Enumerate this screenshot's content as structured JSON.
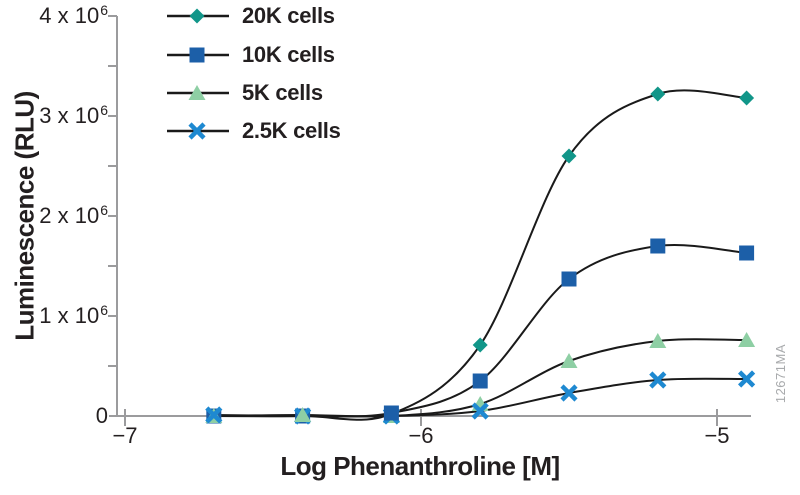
{
  "figure": {
    "watermark": "12671MA",
    "background": "#ffffff",
    "text_color": "#231f20",
    "axis_color": "#9b9b9d",
    "curve_color": "#1a1a1a",
    "watermark_color": "#a8aaac"
  },
  "chart_data": {
    "type": "line",
    "title": "",
    "xlabel": "Log Phenanthroline [M]",
    "ylabel": "Luminescence (RLU)",
    "grid": false,
    "legend_position": "top-left",
    "xlim": [
      -7,
      -4.78
    ],
    "ylim": [
      0,
      4000000
    ],
    "x_ticks": [
      {
        "v": -7,
        "label": "−7"
      },
      {
        "v": -6,
        "label": "−6"
      },
      {
        "v": -5,
        "label": "−5"
      }
    ],
    "y_ticks": [
      {
        "v": 0,
        "base": "0",
        "sup": ""
      },
      {
        "v": 1000000,
        "base": "1 x 10",
        "sup": "6"
      },
      {
        "v": 2000000,
        "base": "2 x 10",
        "sup": "6"
      },
      {
        "v": 3000000,
        "base": "3 x 10",
        "sup": "6"
      },
      {
        "v": 4000000,
        "base": "4 x 10",
        "sup": "6"
      }
    ],
    "y_minor_ticks": [
      500000,
      1500000,
      2500000,
      3500000
    ],
    "x": [
      -6.7,
      -6.4,
      -6.1,
      -5.8,
      -5.5,
      -5.2,
      -4.9
    ],
    "series": [
      {
        "name": "20K cells",
        "marker": "diamond",
        "color": "#119689",
        "values": [
          0,
          0,
          20000,
          710000,
          2600000,
          3220000,
          3180000
        ]
      },
      {
        "name": "10K cells",
        "marker": "square",
        "color": "#1c5fa8",
        "values": [
          0,
          0,
          30000,
          350000,
          1370000,
          1700000,
          1630000
        ]
      },
      {
        "name": "5K cells",
        "marker": "triangle",
        "color": "#8ecfa4",
        "values": [
          0,
          10000,
          0,
          120000,
          550000,
          750000,
          760000
        ]
      },
      {
        "name": "2.5K cells",
        "marker": "x",
        "color": "#1e89d1",
        "values": [
          10000,
          0,
          0,
          50000,
          230000,
          360000,
          370000
        ]
      }
    ]
  }
}
